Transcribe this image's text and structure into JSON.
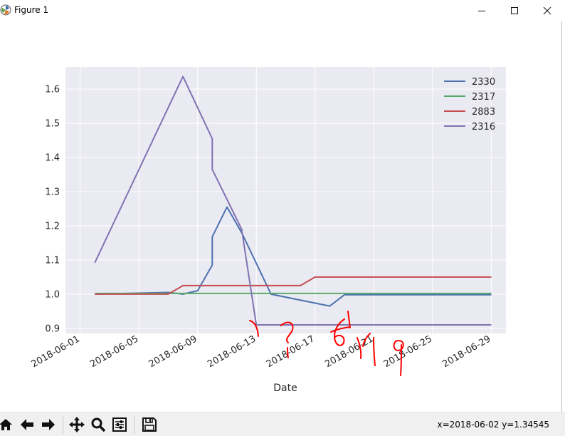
{
  "window": {
    "title": "Figure 1",
    "icon": "matplotlib-icon",
    "controls": [
      "minimize-icon",
      "maximize-icon",
      "close-icon"
    ]
  },
  "toolbar": {
    "buttons": [
      "home-icon",
      "back-icon",
      "forward-icon",
      "pan-icon",
      "zoom-icon",
      "configure-subplots-icon",
      "save-icon"
    ],
    "status": "x=2018-06-02 y=1.34545"
  },
  "chart_data": {
    "type": "line",
    "xlabel": "Date",
    "ylabel": "",
    "x_type": "date",
    "xlim": [
      "2018-05-31",
      "2018-06-30"
    ],
    "ylim": [
      0.885,
      1.665
    ],
    "x_ticks": [
      "2018-06-01",
      "2018-06-05",
      "2018-06-09",
      "2018-06-13",
      "2018-06-17",
      "2018-06-21",
      "2018-06-25",
      "2018-06-29"
    ],
    "y_ticks": [
      0.9,
      1.0,
      1.1,
      1.2,
      1.3,
      1.4,
      1.5,
      1.6
    ],
    "grid": true,
    "legend_position": "top-right",
    "series": [
      {
        "name": "2330",
        "color": "#4c72b0",
        "points": [
          [
            "2018-06-02",
            1.0
          ],
          [
            "2018-06-07",
            1.005
          ],
          [
            "2018-06-08",
            1.0
          ],
          [
            "2018-06-09",
            1.01
          ],
          [
            "2018-06-10",
            1.085
          ],
          [
            "2018-06-10",
            1.168
          ],
          [
            "2018-06-11",
            1.255
          ],
          [
            "2018-06-12",
            1.18
          ],
          [
            "2018-06-14",
            1.0
          ],
          [
            "2018-06-18",
            0.965
          ],
          [
            "2018-06-19",
            0.998
          ],
          [
            "2018-06-29",
            0.998
          ]
        ]
      },
      {
        "name": "2317",
        "color": "#55a868",
        "points": [
          [
            "2018-06-02",
            1.002
          ],
          [
            "2018-06-29",
            1.002
          ]
        ]
      },
      {
        "name": "2883",
        "color": "#c44e52",
        "points": [
          [
            "2018-06-02",
            1.0
          ],
          [
            "2018-06-07",
            1.0
          ],
          [
            "2018-06-08",
            1.025
          ],
          [
            "2018-06-16",
            1.025
          ],
          [
            "2018-06-17",
            1.05
          ],
          [
            "2018-06-29",
            1.05
          ]
        ]
      },
      {
        "name": "2316",
        "color": "#8172b2",
        "points": [
          [
            "2018-06-02",
            1.092
          ],
          [
            "2018-06-08",
            1.637
          ],
          [
            "2018-06-10",
            1.455
          ],
          [
            "2018-06-10",
            1.365
          ],
          [
            "2018-06-12",
            1.19
          ],
          [
            "2018-06-13",
            0.91
          ],
          [
            "2018-06-29",
            0.91
          ]
        ]
      }
    ],
    "annotation_color": "#ff0000"
  }
}
